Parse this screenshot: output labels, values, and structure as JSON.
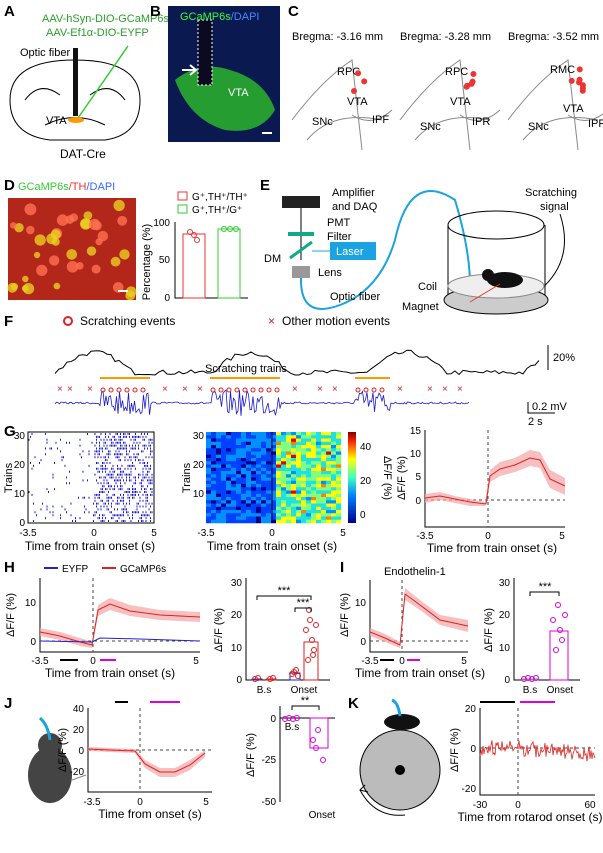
{
  "A": {
    "label": "A",
    "virus1": "AAV-hSyn-DIO-GCaMP6s",
    "virus2": "AAV-Ef1α-DIO-EYFP",
    "fiber": "Optic fiber",
    "region": "VTA",
    "mouse": "DAT-Cre"
  },
  "B": {
    "label": "B",
    "stain_green": "GCaMP6s",
    "stain_blue": "/DAPI",
    "region": "VTA"
  },
  "C": {
    "label": "C",
    "sections": [
      {
        "bregma": "Bregma: -3.16 mm",
        "labels": [
          "RPC",
          "VTA",
          "SNc",
          "IPF"
        ]
      },
      {
        "bregma": "Bregma: -3.28 mm",
        "labels": [
          "RPC",
          "VTA",
          "SNc",
          "IPR"
        ]
      },
      {
        "bregma": "Bregma: -3.52 mm",
        "labels": [
          "RMC",
          "VTA",
          "SNc",
          "IPR"
        ]
      }
    ]
  },
  "D": {
    "label": "D",
    "stain": [
      "GCaMP6s",
      "/TH",
      "/DAPI"
    ],
    "legend": [
      "G⁺,TH⁺/TH⁺",
      "G⁺,TH⁺/G⁺"
    ],
    "ylabel": "Percentage (%)",
    "yticks": [
      "0",
      "50",
      "100"
    ]
  },
  "E": {
    "label": "E",
    "amp": [
      "Amplifier",
      "and DAQ"
    ],
    "pmt": "PMT",
    "filter": "Filter",
    "dm": "DM",
    "laser": "Laser",
    "lens": "Lens",
    "fiber": "Optic fiber",
    "signal": [
      "Scratching",
      "signal"
    ],
    "coil": "Coil",
    "magnet": "Magnet"
  },
  "F": {
    "label": "F",
    "legend": [
      "Scratching events",
      "Other motion events"
    ],
    "scale_f": "20%",
    "trains": "Scratching trains",
    "scale_v": "0.2 mV",
    "scale_t": "2 s"
  },
  "G": {
    "label": "G",
    "ylabel": "Trains",
    "yticks": [
      "0",
      "10",
      "20",
      "30"
    ],
    "xlabel": "Time from train onset (s)",
    "xticks": [
      "-3.5",
      "0",
      "5"
    ],
    "cbar_ticks": [
      "0",
      "20",
      "40"
    ],
    "cbar_label": "ΔF/F (%)",
    "ylabel3": "ΔF/F (%)",
    "yticks3": [
      "0",
      "5",
      "10",
      "15"
    ]
  },
  "H": {
    "label": "H",
    "legend": [
      "EYFP",
      "GCaMP6s"
    ],
    "ylabel": "ΔF/F (%)",
    "yticks": [
      "0",
      "10"
    ],
    "xlabel": "Time from train onset (s)",
    "xticks": [
      "-3.5",
      "0",
      "5"
    ],
    "yticks2": [
      "0",
      "10",
      "20",
      "30"
    ],
    "stars": [
      "***",
      "***"
    ],
    "groups": [
      "B.s",
      "Onset"
    ]
  },
  "I": {
    "label": "I",
    "title": "Endothelin-1",
    "ylabel": "ΔF/F (%)",
    "yticks": [
      "0",
      "10"
    ],
    "xlabel": "Time from train onset (s)",
    "xticks": [
      "-3.5",
      "0",
      "5"
    ],
    "yticks2": [
      "0",
      "10",
      "20",
      "30"
    ],
    "stars": "***",
    "groups": [
      "B.s",
      "Onset"
    ]
  },
  "J": {
    "label": "J",
    "ylabel": "ΔF/F (%)",
    "yticks": [
      "40",
      "20",
      "0",
      "-20"
    ],
    "xlabel": "Time from onset (s)",
    "xticks": [
      "-3.5",
      "0",
      "5"
    ],
    "yticks2": [
      "0",
      "-25",
      "-50"
    ],
    "stars": "**",
    "groups": [
      "B.s",
      "Onset"
    ]
  },
  "K": {
    "label": "K",
    "ylabel": "ΔF/F (%)",
    "yticks": [
      "20",
      "0",
      "-20"
    ],
    "xlabel": "Time from rotarod onset (s)",
    "xticks": [
      "-30",
      "0",
      "60"
    ]
  }
}
